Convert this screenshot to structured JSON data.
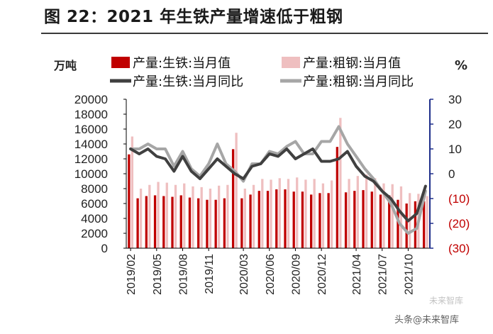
{
  "title": "图 22：2021 年生铁产量增速低于粗钢",
  "watermark": "头条@未来智库",
  "watermark_logo": "未来智库",
  "colors": {
    "pig_bar": "#c00000",
    "steel_bar": "#efbfc0",
    "pig_line": "#404040",
    "steel_line": "#a6a6a6",
    "right_axis": "#1f2f8a",
    "negative_tick": "#c00000"
  },
  "chart_data": {
    "type": "bar+line",
    "title": "图 22：2021 年生铁产量增速低于粗钢",
    "left_unit": "万吨",
    "right_unit": "%",
    "y_left": {
      "min": 0,
      "max": 20000,
      "ticks": [
        "0",
        "2000",
        "4000",
        "6000",
        "8000",
        "10000",
        "12000",
        "14000",
        "16000",
        "18000",
        "20000"
      ]
    },
    "y_right": {
      "min": -30,
      "max": 30,
      "ticks": [
        "(30)",
        "(20)",
        "(10)",
        "0",
        "10",
        "20",
        "30"
      ]
    },
    "categories": [
      "2019/02",
      "2019/03",
      "2019/04",
      "2019/05",
      "2019/06",
      "2019/07",
      "2019/08",
      "2019/09",
      "2019/10",
      "2019/11",
      "2019/12",
      "2020/01",
      "2020/02",
      "2020/03",
      "2020/04",
      "2020/05",
      "2020/06",
      "2020/07",
      "2020/08",
      "2020/09",
      "2020/10",
      "2020/11",
      "2020/12",
      "2021/01",
      "2021/02",
      "2021/03",
      "2021/04",
      "2021/05",
      "2021/06",
      "2021/07",
      "2021/08",
      "2021/09",
      "2021/10",
      "2021/11",
      "2021/12"
    ],
    "x_tick_labels": [
      "2019/02",
      "2019/05",
      "2019/08",
      "2019/11",
      "2020/03",
      "2020/06",
      "2020/09",
      "2020/12",
      "2021/04",
      "2021/07",
      "2021/10"
    ],
    "series": [
      {
        "name": "产量:生铁:当月值",
        "kind": "bar",
        "axis": "left",
        "values": [
          12600,
          6700,
          7000,
          7100,
          7000,
          6900,
          7100,
          6800,
          6700,
          6500,
          6500,
          6700,
          13300,
          6700,
          7200,
          7700,
          7700,
          7900,
          7900,
          7600,
          7600,
          7200,
          7400,
          7400,
          13600,
          7500,
          7700,
          7800,
          7600,
          7200,
          7100,
          6500,
          6000,
          6300,
          6300
        ]
      },
      {
        "name": "产量:粗钢:当月值",
        "kind": "bar",
        "axis": "left",
        "values": [
          15000,
          8000,
          8500,
          8900,
          8800,
          8500,
          8700,
          8300,
          8200,
          8000,
          8400,
          8500,
          15500,
          8000,
          8500,
          9300,
          9200,
          9400,
          9300,
          9500,
          9200,
          9300,
          8700,
          9100,
          17500,
          9300,
          9700,
          9900,
          9400,
          8700,
          8600,
          8300,
          7400,
          7300,
          7000
        ]
      },
      {
        "name": "产量:生铁:当月同比",
        "kind": "line",
        "axis": "right",
        "values": [
          10,
          8,
          10,
          7,
          6,
          1,
          7,
          1,
          -2,
          2,
          6,
          3,
          0,
          -2,
          3,
          4,
          8,
          7,
          10,
          6,
          8,
          10,
          5,
          5,
          6,
          9,
          3,
          -1,
          -3,
          -7,
          -10,
          -15,
          -19,
          -16,
          -5
        ]
      },
      {
        "name": "产量:粗钢:当月同比",
        "kind": "line",
        "axis": "right",
        "values": [
          10,
          10,
          12,
          10,
          10,
          3,
          9,
          2,
          -1,
          4,
          12,
          4,
          1,
          -3,
          4,
          4,
          9,
          8,
          11,
          13,
          8,
          8,
          13,
          13,
          19,
          12,
          7,
          2,
          -2,
          -7,
          -12,
          -20,
          -24,
          -22,
          -7
        ]
      }
    ],
    "legend_position": "top"
  }
}
